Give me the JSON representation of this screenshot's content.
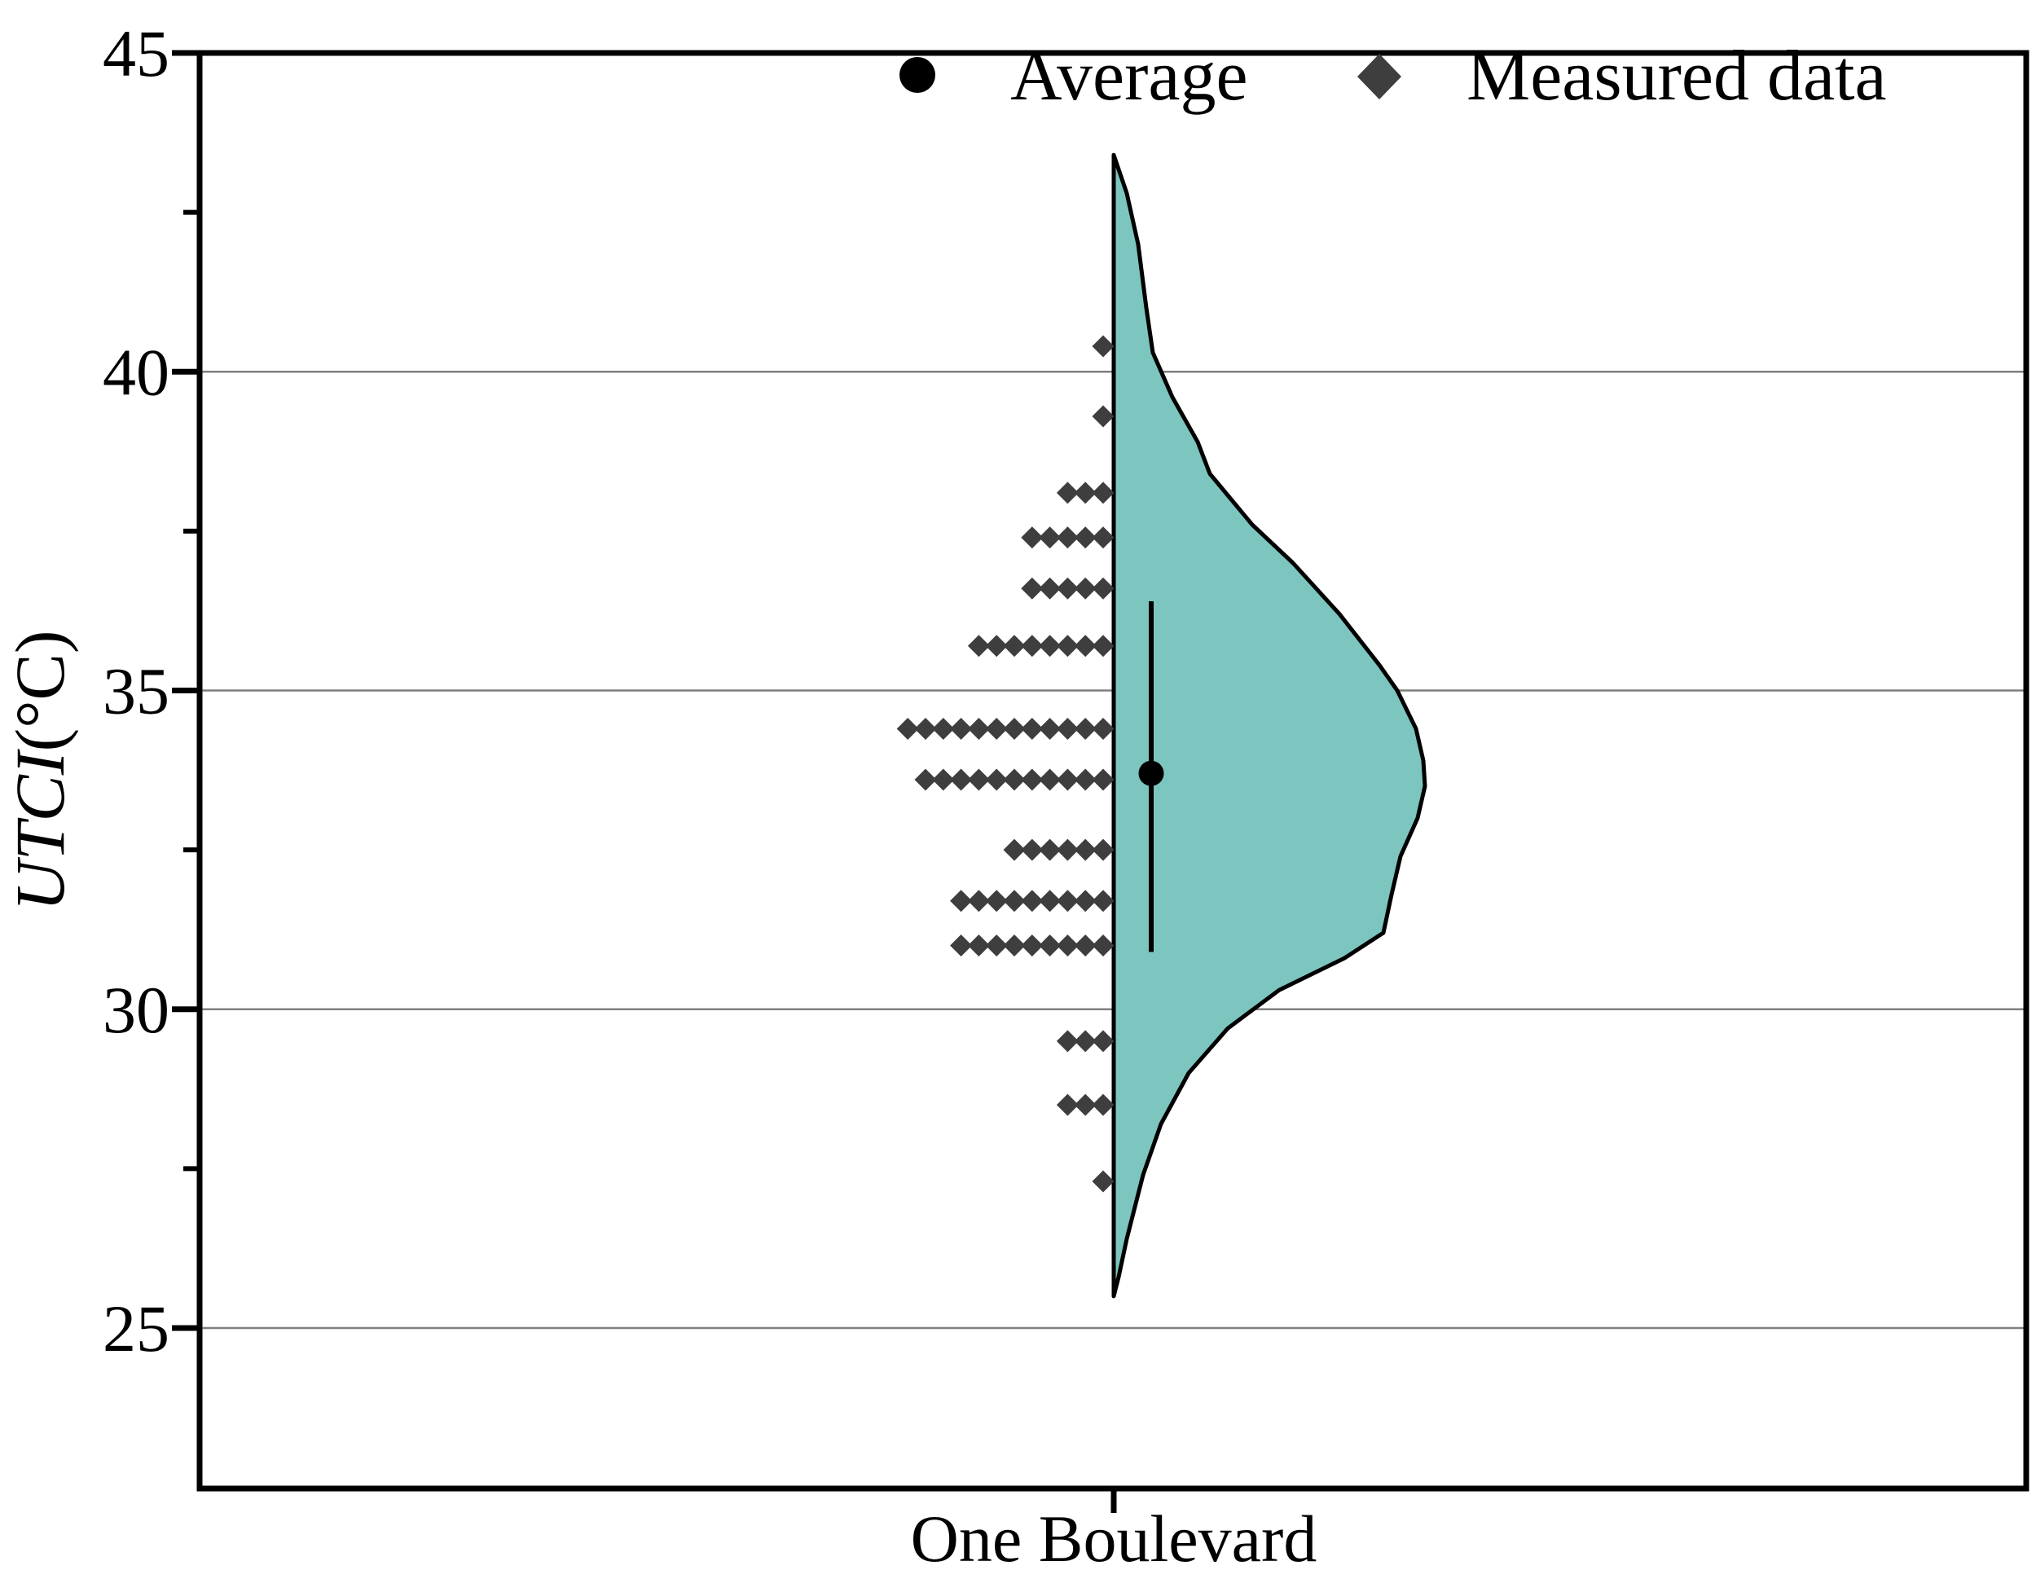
{
  "figure": {
    "x_category_label": "One Boulevard",
    "y_axis_label_italic": "UTCI",
    "y_axis_label_units": "(°C)",
    "legend": [
      {
        "symbol": "circle",
        "label": "Average"
      },
      {
        "symbol": "diamond",
        "label": "Measured data"
      }
    ]
  },
  "chart_data": {
    "type": "half-violin with diamond dot strips (raincloud)",
    "title": "",
    "categories": [
      "One Boulevard"
    ],
    "ylabel": "UTCI(°C)",
    "ylim": [
      22.5,
      45
    ],
    "y_major_ticks": [
      45,
      40,
      35,
      30,
      25
    ],
    "y_minor_ticks": [
      42.5,
      37.5,
      32.5,
      27.5
    ],
    "gridlines_at": [
      40,
      35,
      30,
      25
    ],
    "grid": true,
    "legend_position": "top",
    "average": 33.7,
    "error_bar": {
      "top": 36.4,
      "bottom": 30.9
    },
    "measured_rows": [
      {
        "utci": 40.4,
        "count": 1
      },
      {
        "utci": 39.3,
        "count": 1
      },
      {
        "utci": 38.1,
        "count": 3
      },
      {
        "utci": 37.4,
        "count": 5
      },
      {
        "utci": 36.6,
        "count": 5
      },
      {
        "utci": 35.7,
        "count": 8
      },
      {
        "utci": 34.4,
        "count": 12
      },
      {
        "utci": 33.6,
        "count": 11
      },
      {
        "utci": 32.5,
        "count": 6
      },
      {
        "utci": 31.7,
        "count": 9
      },
      {
        "utci": 31.0,
        "count": 9
      },
      {
        "utci": 29.5,
        "count": 3
      },
      {
        "utci": 28.5,
        "count": 3
      },
      {
        "utci": 27.3,
        "count": 1
      }
    ],
    "total_points": 77,
    "violin_profile": [
      [
        43.4,
        0
      ],
      [
        42.8,
        16
      ],
      [
        42.0,
        30
      ],
      [
        41.0,
        40
      ],
      [
        40.3,
        48
      ],
      [
        39.6,
        72
      ],
      [
        38.9,
        103
      ],
      [
        38.4,
        118
      ],
      [
        37.6,
        170
      ],
      [
        37.0,
        220
      ],
      [
        36.2,
        277
      ],
      [
        35.4,
        326
      ],
      [
        35.0,
        348
      ],
      [
        34.4,
        371
      ],
      [
        33.9,
        380
      ],
      [
        33.5,
        382
      ],
      [
        33.0,
        373
      ],
      [
        32.4,
        352
      ],
      [
        31.8,
        341
      ],
      [
        31.2,
        331
      ],
      [
        30.8,
        283
      ],
      [
        30.3,
        203
      ],
      [
        29.7,
        140
      ],
      [
        29.0,
        92
      ],
      [
        28.2,
        58
      ],
      [
        27.4,
        36
      ],
      [
        26.4,
        16
      ],
      [
        25.8,
        6
      ],
      [
        25.5,
        0
      ]
    ],
    "colors": {
      "violin_fill": "#7cc6bf",
      "violin_stroke": "#000000",
      "diamond": "#3e3e3e",
      "grid": "#7f7f7f",
      "axis": "#000000",
      "average_dot": "#000000"
    }
  }
}
